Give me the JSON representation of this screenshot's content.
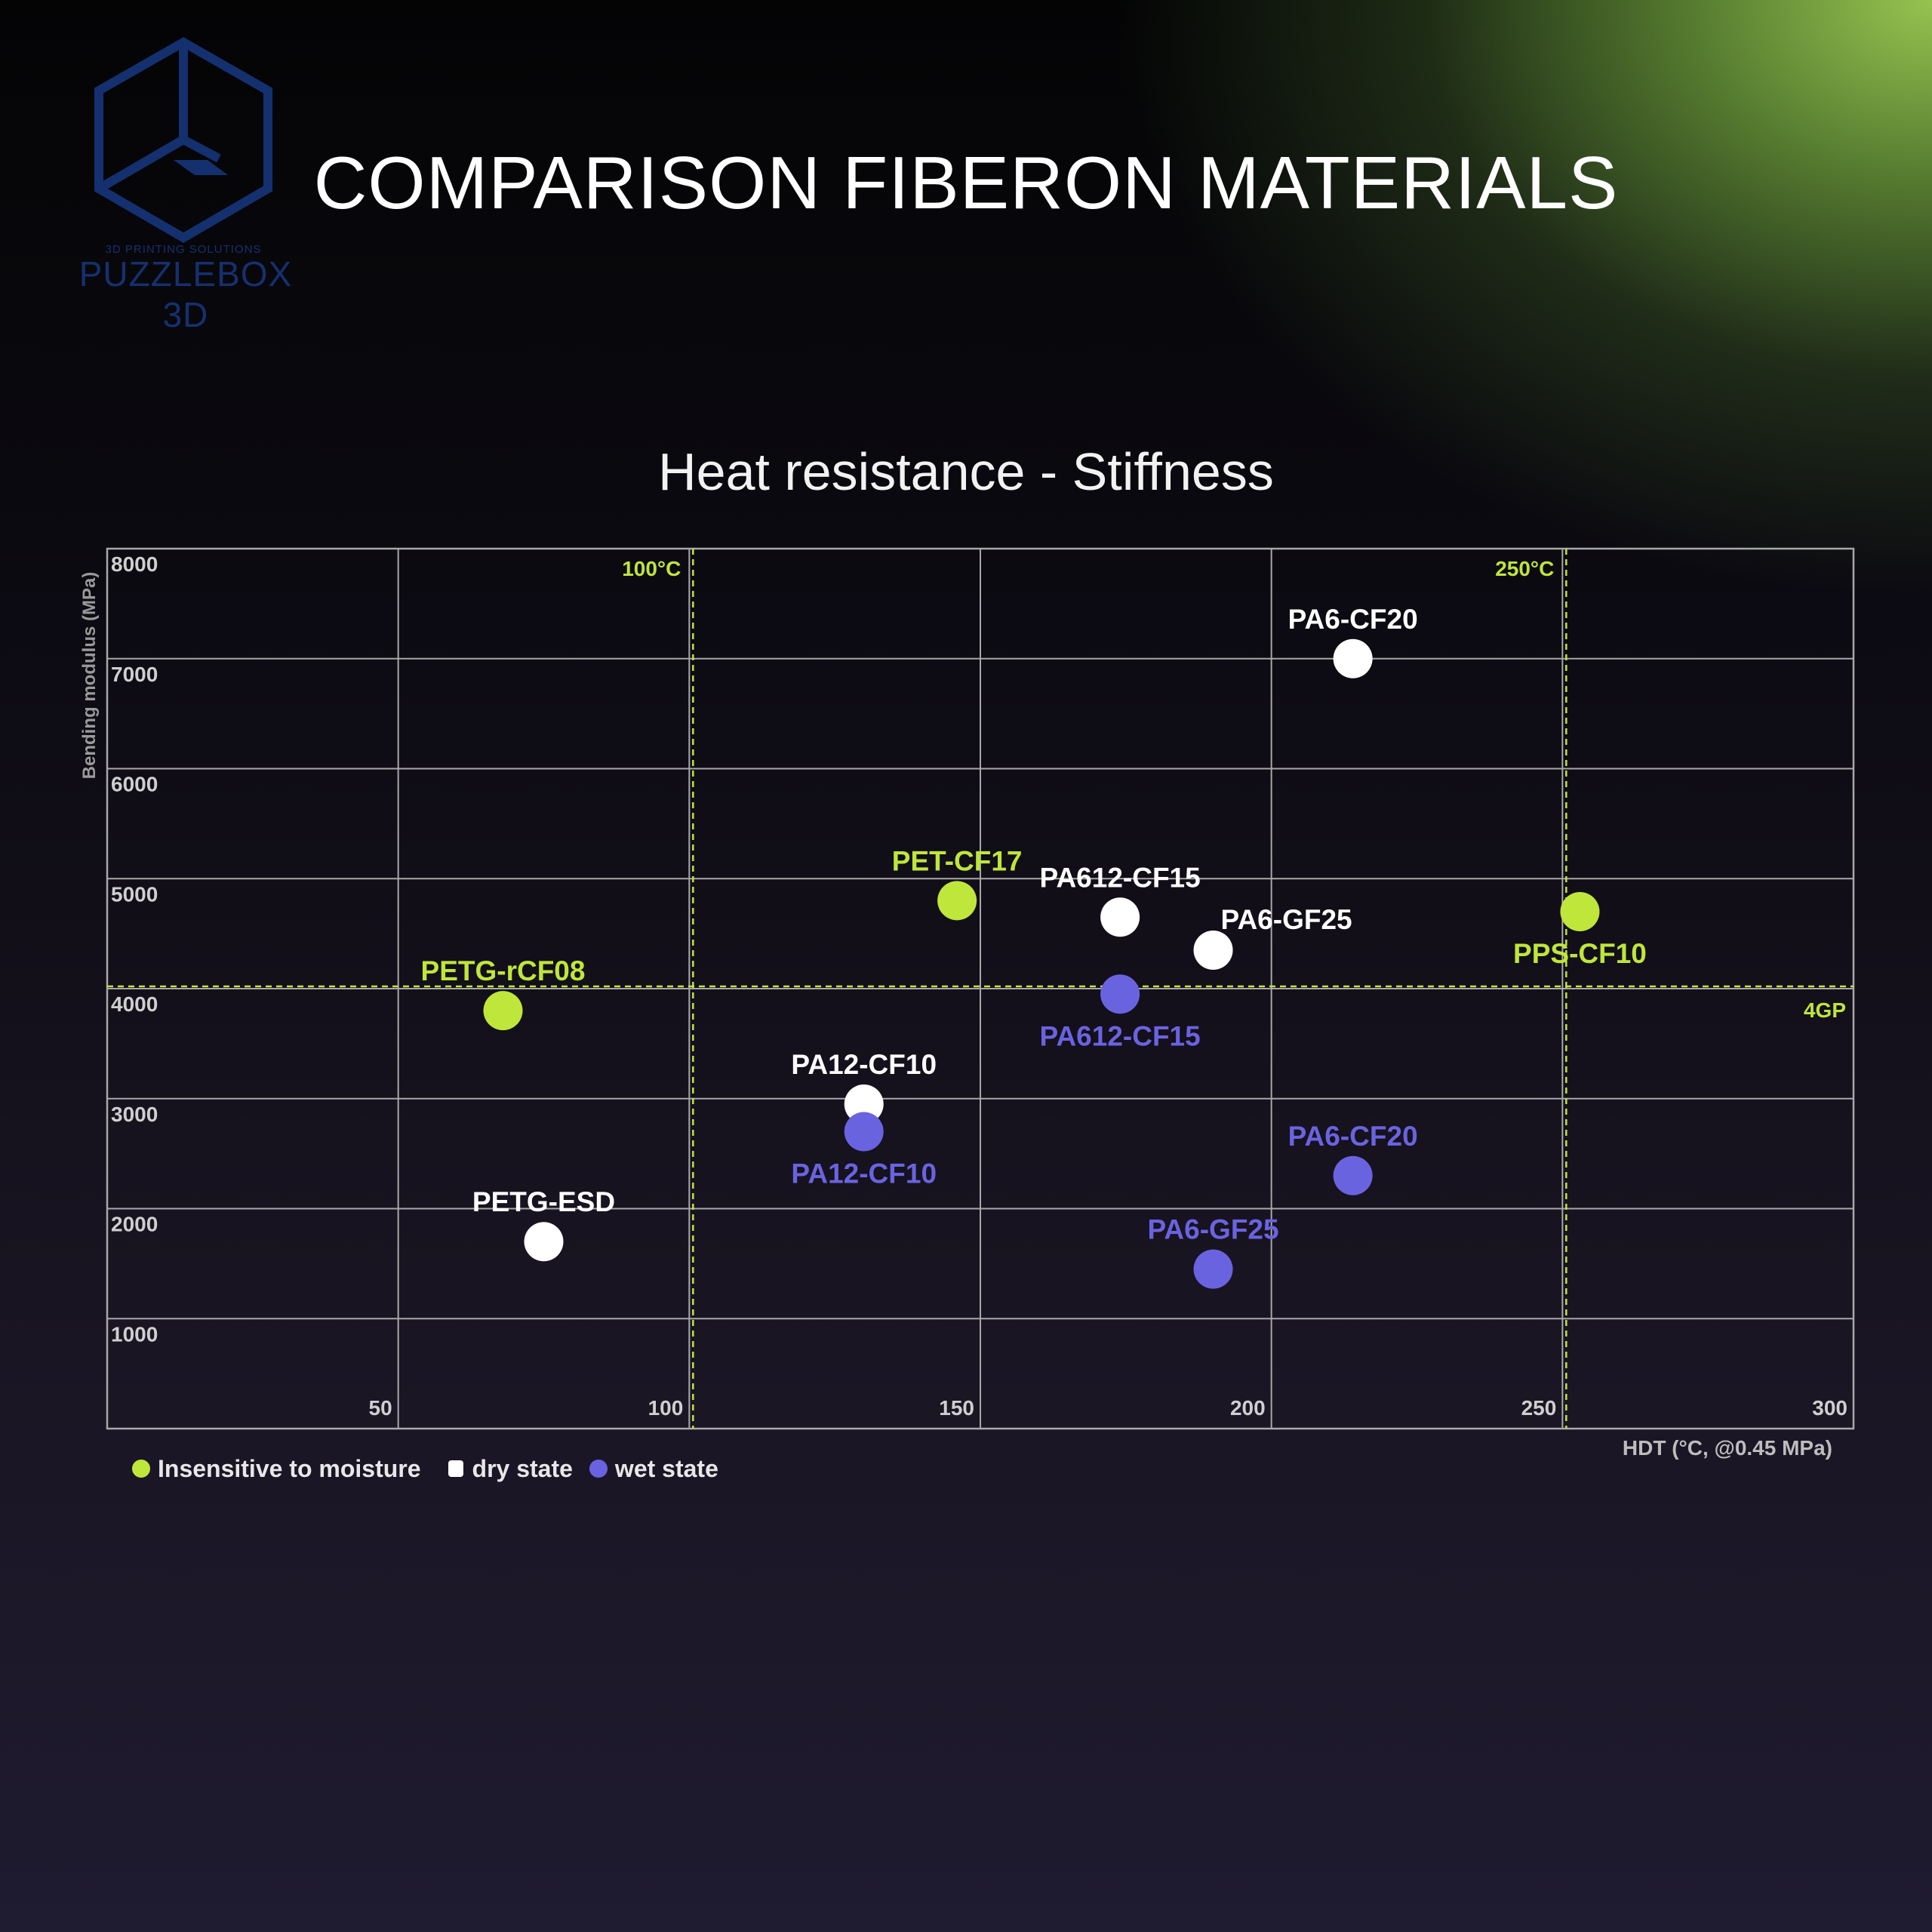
{
  "header": {
    "title": "COMPARISON FIBERON MATERIALS",
    "logo_small": "3D PRINTING SOLUTIONS",
    "logo_name": "PUZZLEBOX 3D",
    "logo_icon": "cube-logo-icon"
  },
  "legend": {
    "insensitive": "Insensitive to moisture",
    "dry": "dry state",
    "wet": "wet state"
  },
  "colors": {
    "insensitive": "#bfe63a",
    "dry": "#ffffff",
    "wet": "#6a63e0",
    "grid": "#a8a8a8",
    "reference": "#bfe63a"
  },
  "chart_data": {
    "type": "scatter",
    "title": "Heat resistance - Stiffness",
    "xlabel": "HDT (°C, @0.45 MPa)",
    "ylabel": "Bending modulus (MPa)",
    "xlim": [
      0,
      300
    ],
    "ylim": [
      0,
      8000
    ],
    "grid": true,
    "legend_position": "bottom-left",
    "x_ticks": [
      {
        "value": 50,
        "label": "50"
      },
      {
        "value": 100,
        "label": "100"
      },
      {
        "value": 150,
        "label": "150"
      },
      {
        "value": 200,
        "label": "200"
      },
      {
        "value": 250,
        "label": "250"
      },
      {
        "value": 300,
        "label": "300"
      }
    ],
    "y_ticks": [
      {
        "value": 1000,
        "label": "1000"
      },
      {
        "value": 2000,
        "label": "2000"
      },
      {
        "value": 3000,
        "label": "3000"
      },
      {
        "value": 4000,
        "label": "4000"
      },
      {
        "value": 5000,
        "label": "5000"
      },
      {
        "value": 6000,
        "label": "6000"
      },
      {
        "value": 7000,
        "label": "7000"
      },
      {
        "value": 8000,
        "label": "8000"
      }
    ],
    "reference_lines": [
      {
        "axis": "x",
        "value": 100,
        "label": "100°C"
      },
      {
        "axis": "x",
        "value": 250,
        "label": "250°C"
      },
      {
        "axis": "y",
        "value": 4000,
        "label": "4GP"
      }
    ],
    "series": [
      {
        "key": "insensitive",
        "points": [
          {
            "label": "PETG-rCF08",
            "x": 68,
            "y": 3800,
            "label_pos": "above"
          },
          {
            "label": "PET-CF17",
            "x": 146,
            "y": 4800,
            "label_pos": "above"
          },
          {
            "label": "PPS-CF10",
            "x": 253,
            "y": 4700,
            "label_pos": "below"
          }
        ]
      },
      {
        "key": "dry",
        "points": [
          {
            "label": "PETG-ESD",
            "x": 75,
            "y": 1700,
            "label_pos": "above"
          },
          {
            "label": "PA12-CF10",
            "x": 130,
            "y": 2950,
            "label_pos": "above"
          },
          {
            "label": "PA612-CF15",
            "x": 174,
            "y": 4650,
            "label_pos": "above"
          },
          {
            "label": "PA6-GF25",
            "x": 190,
            "y": 4350,
            "label_pos": "right"
          },
          {
            "label": "PA6-CF20",
            "x": 214,
            "y": 7000,
            "label_pos": "above"
          }
        ]
      },
      {
        "key": "wet",
        "points": [
          {
            "label": "PA12-CF10",
            "x": 130,
            "y": 2700,
            "label_pos": "below"
          },
          {
            "label": "PA612-CF15",
            "x": 174,
            "y": 3950,
            "label_pos": "below"
          },
          {
            "label": "PA6-GF25",
            "x": 190,
            "y": 1450,
            "label_pos": "above"
          },
          {
            "label": "PA6-CF20",
            "x": 214,
            "y": 2300,
            "label_pos": "above"
          }
        ]
      }
    ]
  }
}
